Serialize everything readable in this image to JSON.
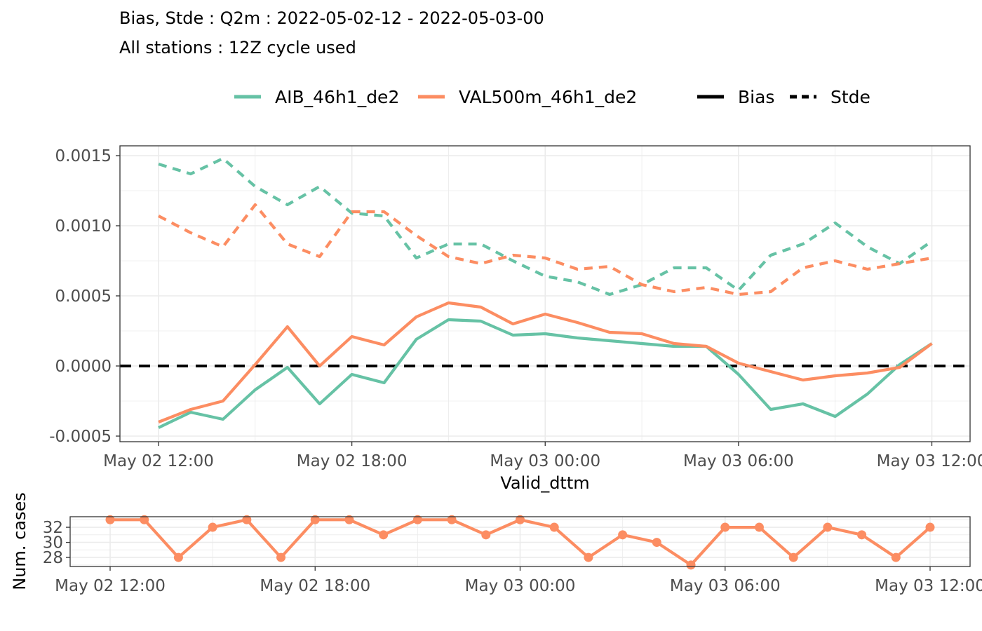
{
  "header": {
    "title": "Bias, Stde : Q2m : 2022-05-02-12 - 2022-05-03-00",
    "subtitle": "All stations : 12Z cycle used"
  },
  "legend": {
    "colour_entries": [
      {
        "label": "AIB_46h1_de2",
        "color": "#66C2A5"
      },
      {
        "label": "VAL500m_46h1_de2",
        "color": "#FC8D62"
      }
    ],
    "linetype_entries": [
      {
        "label": "Bias",
        "style": "solid"
      },
      {
        "label": "Stde",
        "style": "dashed"
      }
    ]
  },
  "chart_data": [
    {
      "type": "line",
      "xlabel": "Valid_dttm",
      "ylabel": "",
      "x_start": "2022-05-02 12:00",
      "x_step_hours": 1,
      "x_ticks": [
        "May 02 12:00",
        "May 02 18:00",
        "May 03 00:00",
        "May 03 06:00",
        "May 03 12:00"
      ],
      "y_ticks": [
        "-0.0005",
        "0.0000",
        "0.0005",
        "0.0010",
        "0.0015"
      ],
      "ylim": [
        -0.00054,
        0.00157
      ],
      "reference_line": 0,
      "series": [
        {
          "name": "AIB_46h1_de2",
          "score": "Bias",
          "color": "#66C2A5",
          "dash": "solid",
          "values": [
            -0.00044,
            -0.00033,
            -0.00038,
            -0.00017,
            -1e-05,
            -0.00027,
            -6e-05,
            -0.00012,
            0.00019,
            0.00033,
            0.00032,
            0.00022,
            0.00023,
            0.0002,
            0.00018,
            0.00016,
            0.00014,
            0.00014,
            -6e-05,
            -0.00031,
            -0.00027,
            -0.00036,
            -0.0002,
            1e-05,
            0.00016
          ]
        },
        {
          "name": "VAL500m_46h1_de2",
          "score": "Bias",
          "color": "#FC8D62",
          "dash": "solid",
          "values": [
            -0.0004,
            -0.00031,
            -0.00025,
            1e-05,
            0.00028,
            0.0,
            0.00021,
            0.00015,
            0.00035,
            0.00045,
            0.00042,
            0.0003,
            0.00037,
            0.00031,
            0.00024,
            0.00023,
            0.00016,
            0.00014,
            2e-05,
            -4e-05,
            -0.0001,
            -7e-05,
            -5e-05,
            -1e-05,
            0.00016
          ]
        },
        {
          "name": "AIB_46h1_de2",
          "score": "Stde",
          "color": "#66C2A5",
          "dash": "dashed",
          "values": [
            0.00144,
            0.00137,
            0.00148,
            0.00128,
            0.00115,
            0.00128,
            0.00109,
            0.00107,
            0.00077,
            0.00087,
            0.00087,
            0.00075,
            0.00064,
            0.0006,
            0.00051,
            0.00058,
            0.0007,
            0.0007,
            0.00054,
            0.00079,
            0.00087,
            0.00102,
            0.00085,
            0.00073,
            0.00089
          ]
        },
        {
          "name": "VAL500m_46h1_de2",
          "score": "Stde",
          "color": "#FC8D62",
          "dash": "dashed",
          "values": [
            0.00107,
            0.00095,
            0.00085,
            0.00115,
            0.00087,
            0.00078,
            0.0011,
            0.0011,
            0.00093,
            0.00078,
            0.00073,
            0.00079,
            0.00077,
            0.00069,
            0.00071,
            0.00058,
            0.00053,
            0.00056,
            0.00051,
            0.00053,
            0.0007,
            0.00075,
            0.00069,
            0.00073,
            0.00077
          ]
        }
      ]
    },
    {
      "type": "line",
      "xlabel": "",
      "ylabel": "Num. cases",
      "x_start": "2022-05-02 12:00",
      "x_step_hours": 1,
      "x_ticks": [
        "May 02 12:00",
        "May 02 18:00",
        "May 03 00:00",
        "May 03 06:00",
        "May 03 12:00"
      ],
      "y_ticks": [
        "28",
        "30",
        "32"
      ],
      "ylim": [
        26.8,
        33.4
      ],
      "series": [
        {
          "color": "#FC8D62",
          "markers": true,
          "values": [
            33,
            33,
            28,
            32,
            33,
            28,
            33,
            33,
            31,
            33,
            33,
            31,
            33,
            32,
            28,
            31,
            30,
            27,
            32,
            32,
            28,
            32,
            31,
            28,
            32
          ]
        }
      ]
    }
  ]
}
